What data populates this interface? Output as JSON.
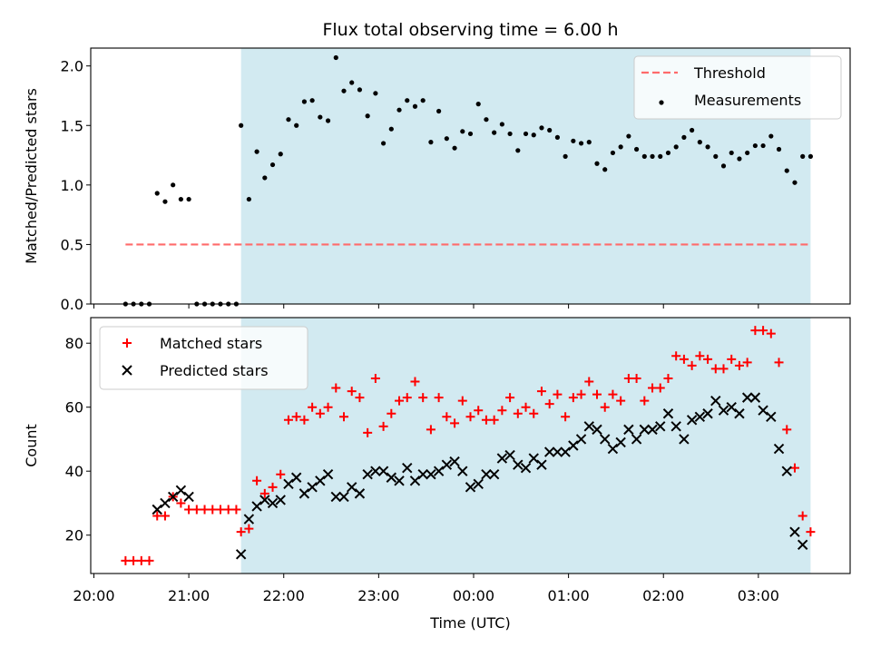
{
  "chart_data": [
    {
      "type": "scatter",
      "title": "Flux total observing time = 6.00 h",
      "xlabel": "",
      "ylabel": "Matched/Predicted stars",
      "ylim": [
        0,
        2.15
      ],
      "yticks": [
        "0.0",
        "0.5",
        "1.0",
        "1.5",
        "2.0"
      ],
      "grid": false,
      "legend_position": "top-right",
      "shaded_interval": {
        "start": "21:33",
        "end": "03:33",
        "color": "#add8e6"
      },
      "threshold": {
        "name": "Threshold",
        "value": 0.5,
        "start": "20:20",
        "end": "03:33",
        "color": "#ff6b6b",
        "style": "dashed"
      },
      "series": [
        {
          "name": "Measurements",
          "marker": "dot",
          "color": "#000000",
          "points": [
            [
              "20:20",
              0
            ],
            [
              "20:25",
              0
            ],
            [
              "20:30",
              0
            ],
            [
              "20:35",
              0
            ],
            [
              "20:40",
              0.93
            ],
            [
              "20:45",
              0.86
            ],
            [
              "20:50",
              1.0
            ],
            [
              "20:55",
              0.88
            ],
            [
              "21:00",
              0.88
            ],
            [
              "21:05",
              0
            ],
            [
              "21:10",
              0
            ],
            [
              "21:15",
              0
            ],
            [
              "21:20",
              0
            ],
            [
              "21:25",
              0
            ],
            [
              "21:30",
              0
            ],
            [
              "21:33",
              1.5
            ],
            [
              "21:38",
              0.88
            ],
            [
              "21:43",
              1.28
            ],
            [
              "21:48",
              1.06
            ],
            [
              "21:53",
              1.17
            ],
            [
              "21:58",
              1.26
            ],
            [
              "22:03",
              1.55
            ],
            [
              "22:08",
              1.5
            ],
            [
              "22:13",
              1.7
            ],
            [
              "22:18",
              1.71
            ],
            [
              "22:23",
              1.57
            ],
            [
              "22:28",
              1.54
            ],
            [
              "22:33",
              2.07
            ],
            [
              "22:38",
              1.79
            ],
            [
              "22:43",
              1.86
            ],
            [
              "22:48",
              1.8
            ],
            [
              "22:53",
              1.58
            ],
            [
              "22:58",
              1.77
            ],
            [
              "23:03",
              1.35
            ],
            [
              "23:08",
              1.47
            ],
            [
              "23:13",
              1.63
            ],
            [
              "23:18",
              1.71
            ],
            [
              "23:23",
              1.66
            ],
            [
              "23:28",
              1.71
            ],
            [
              "23:33",
              1.36
            ],
            [
              "23:38",
              1.62
            ],
            [
              "23:43",
              1.39
            ],
            [
              "23:48",
              1.31
            ],
            [
              "23:53",
              1.45
            ],
            [
              "23:58",
              1.43
            ],
            [
              "00:03",
              1.68
            ],
            [
              "00:08",
              1.55
            ],
            [
              "00:13",
              1.44
            ],
            [
              "00:18",
              1.51
            ],
            [
              "00:23",
              1.43
            ],
            [
              "00:28",
              1.29
            ],
            [
              "00:33",
              1.43
            ],
            [
              "00:38",
              1.42
            ],
            [
              "00:43",
              1.48
            ],
            [
              "00:48",
              1.46
            ],
            [
              "00:53",
              1.4
            ],
            [
              "00:58",
              1.24
            ],
            [
              "01:03",
              1.37
            ],
            [
              "01:08",
              1.35
            ],
            [
              "01:13",
              1.36
            ],
            [
              "01:18",
              1.18
            ],
            [
              "01:23",
              1.13
            ],
            [
              "01:28",
              1.27
            ],
            [
              "01:33",
              1.32
            ],
            [
              "01:38",
              1.41
            ],
            [
              "01:43",
              1.3
            ],
            [
              "01:48",
              1.24
            ],
            [
              "01:53",
              1.24
            ],
            [
              "01:58",
              1.24
            ],
            [
              "02:03",
              1.27
            ],
            [
              "02:08",
              1.32
            ],
            [
              "02:13",
              1.4
            ],
            [
              "02:18",
              1.46
            ],
            [
              "02:23",
              1.36
            ],
            [
              "02:28",
              1.32
            ],
            [
              "02:33",
              1.24
            ],
            [
              "02:38",
              1.16
            ],
            [
              "02:43",
              1.27
            ],
            [
              "02:48",
              1.22
            ],
            [
              "02:53",
              1.27
            ],
            [
              "02:58",
              1.33
            ],
            [
              "03:03",
              1.33
            ],
            [
              "03:08",
              1.41
            ],
            [
              "03:13",
              1.3
            ],
            [
              "03:18",
              1.12
            ],
            [
              "03:23",
              1.02
            ],
            [
              "03:28",
              1.24
            ],
            [
              "03:33",
              1.24
            ]
          ]
        }
      ]
    },
    {
      "type": "scatter",
      "title": "",
      "xlabel": "Time (UTC)",
      "ylabel": "Count",
      "xlim": [
        "19:58",
        "03:58"
      ],
      "xticks": [
        "20:00",
        "21:00",
        "22:00",
        "23:00",
        "00:00",
        "01:00",
        "02:00",
        "03:00"
      ],
      "ylim": [
        8,
        88
      ],
      "yticks": [
        "20",
        "40",
        "60",
        "80"
      ],
      "grid": false,
      "legend_position": "top-left",
      "shaded_interval": {
        "start": "21:33",
        "end": "03:33",
        "color": "#add8e6"
      },
      "series": [
        {
          "name": "Matched stars",
          "marker": "plus",
          "color": "#ff0000",
          "points": [
            [
              "20:20",
              12
            ],
            [
              "20:25",
              12
            ],
            [
              "20:30",
              12
            ],
            [
              "20:35",
              12
            ],
            [
              "20:40",
              26
            ],
            [
              "20:45",
              26
            ],
            [
              "20:50",
              32
            ],
            [
              "20:55",
              30
            ],
            [
              "21:00",
              28
            ],
            [
              "21:05",
              28
            ],
            [
              "21:10",
              28
            ],
            [
              "21:15",
              28
            ],
            [
              "21:20",
              28
            ],
            [
              "21:25",
              28
            ],
            [
              "21:30",
              28
            ],
            [
              "21:33",
              21
            ],
            [
              "21:38",
              22
            ],
            [
              "21:43",
              37
            ],
            [
              "21:48",
              33
            ],
            [
              "21:53",
              35
            ],
            [
              "21:58",
              39
            ],
            [
              "22:03",
              56
            ],
            [
              "22:08",
              57
            ],
            [
              "22:13",
              56
            ],
            [
              "22:18",
              60
            ],
            [
              "22:23",
              58
            ],
            [
              "22:28",
              60
            ],
            [
              "22:33",
              66
            ],
            [
              "22:38",
              57
            ],
            [
              "22:43",
              65
            ],
            [
              "22:48",
              63
            ],
            [
              "22:53",
              52
            ],
            [
              "22:58",
              69
            ],
            [
              "23:03",
              54
            ],
            [
              "23:08",
              58
            ],
            [
              "23:13",
              62
            ],
            [
              "23:18",
              63
            ],
            [
              "23:23",
              68
            ],
            [
              "23:28",
              63
            ],
            [
              "23:33",
              53
            ],
            [
              "23:38",
              63
            ],
            [
              "23:43",
              57
            ],
            [
              "23:48",
              55
            ],
            [
              "23:53",
              62
            ],
            [
              "23:58",
              57
            ],
            [
              "00:03",
              59
            ],
            [
              "00:08",
              56
            ],
            [
              "00:13",
              56
            ],
            [
              "00:18",
              59
            ],
            [
              "00:23",
              63
            ],
            [
              "00:28",
              58
            ],
            [
              "00:33",
              60
            ],
            [
              "00:38",
              58
            ],
            [
              "00:43",
              65
            ],
            [
              "00:48",
              61
            ],
            [
              "00:53",
              64
            ],
            [
              "00:58",
              57
            ],
            [
              "01:03",
              63
            ],
            [
              "01:08",
              64
            ],
            [
              "01:13",
              68
            ],
            [
              "01:18",
              64
            ],
            [
              "01:23",
              60
            ],
            [
              "01:28",
              64
            ],
            [
              "01:33",
              62
            ],
            [
              "01:38",
              69
            ],
            [
              "01:43",
              69
            ],
            [
              "01:48",
              62
            ],
            [
              "01:53",
              66
            ],
            [
              "01:58",
              66
            ],
            [
              "02:03",
              69
            ],
            [
              "02:08",
              76
            ],
            [
              "02:13",
              75
            ],
            [
              "02:18",
              73
            ],
            [
              "02:23",
              76
            ],
            [
              "02:28",
              75
            ],
            [
              "02:33",
              72
            ],
            [
              "02:38",
              72
            ],
            [
              "02:43",
              75
            ],
            [
              "02:48",
              73
            ],
            [
              "02:53",
              74
            ],
            [
              "02:58",
              84
            ],
            [
              "03:03",
              84
            ],
            [
              "03:08",
              83
            ],
            [
              "03:13",
              74
            ],
            [
              "03:18",
              53
            ],
            [
              "03:23",
              41
            ],
            [
              "03:28",
              26
            ],
            [
              "03:33",
              21
            ]
          ]
        },
        {
          "name": "Predicted stars",
          "marker": "x",
          "color": "#000000",
          "points": [
            [
              "20:40",
              28
            ],
            [
              "20:45",
              30
            ],
            [
              "20:50",
              32
            ],
            [
              "20:55",
              34
            ],
            [
              "21:00",
              32
            ],
            [
              "21:33",
              14
            ],
            [
              "21:38",
              25
            ],
            [
              "21:43",
              29
            ],
            [
              "21:48",
              31
            ],
            [
              "21:53",
              30
            ],
            [
              "21:58",
              31
            ],
            [
              "22:03",
              36
            ],
            [
              "22:08",
              38
            ],
            [
              "22:13",
              33
            ],
            [
              "22:18",
              35
            ],
            [
              "22:23",
              37
            ],
            [
              "22:28",
              39
            ],
            [
              "22:33",
              32
            ],
            [
              "22:38",
              32
            ],
            [
              "22:43",
              35
            ],
            [
              "22:48",
              33
            ],
            [
              "22:53",
              39
            ],
            [
              "22:58",
              40
            ],
            [
              "23:03",
              40
            ],
            [
              "23:08",
              38
            ],
            [
              "23:13",
              37
            ],
            [
              "23:18",
              41
            ],
            [
              "23:23",
              37
            ],
            [
              "23:28",
              39
            ],
            [
              "23:33",
              39
            ],
            [
              "23:38",
              40
            ],
            [
              "23:43",
              42
            ],
            [
              "23:48",
              43
            ],
            [
              "23:53",
              40
            ],
            [
              "23:58",
              35
            ],
            [
              "00:03",
              36
            ],
            [
              "00:08",
              39
            ],
            [
              "00:13",
              39
            ],
            [
              "00:18",
              44
            ],
            [
              "00:23",
              45
            ],
            [
              "00:28",
              42
            ],
            [
              "00:33",
              41
            ],
            [
              "00:38",
              44
            ],
            [
              "00:43",
              42
            ],
            [
              "00:48",
              46
            ],
            [
              "00:53",
              46
            ],
            [
              "00:58",
              46
            ],
            [
              "01:03",
              48
            ],
            [
              "01:08",
              50
            ],
            [
              "01:13",
              54
            ],
            [
              "01:18",
              53
            ],
            [
              "01:23",
              50
            ],
            [
              "01:28",
              47
            ],
            [
              "01:33",
              49
            ],
            [
              "01:38",
              53
            ],
            [
              "01:43",
              50
            ],
            [
              "01:48",
              53
            ],
            [
              "01:53",
              53
            ],
            [
              "01:58",
              54
            ],
            [
              "02:03",
              58
            ],
            [
              "02:08",
              54
            ],
            [
              "02:13",
              50
            ],
            [
              "02:18",
              56
            ],
            [
              "02:23",
              57
            ],
            [
              "02:28",
              58
            ],
            [
              "02:33",
              62
            ],
            [
              "02:38",
              59
            ],
            [
              "02:43",
              60
            ],
            [
              "02:48",
              58
            ],
            [
              "02:53",
              63
            ],
            [
              "02:58",
              63
            ],
            [
              "03:03",
              59
            ],
            [
              "03:08",
              57
            ],
            [
              "03:13",
              47
            ],
            [
              "03:18",
              40
            ],
            [
              "03:23",
              21
            ],
            [
              "03:28",
              17
            ]
          ]
        }
      ]
    }
  ]
}
